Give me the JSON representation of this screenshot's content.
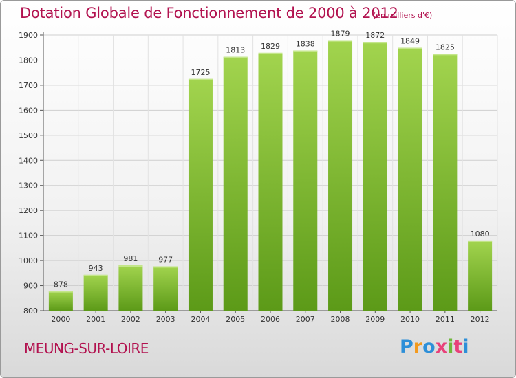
{
  "title": "Dotation Globale de Fonctionnement de 2000 à 2012",
  "subtitle": "(en milliers d'€)",
  "commune": "MEUNG-SUR-LOIRE",
  "logo": {
    "letters": [
      "P",
      "r",
      "o",
      "x",
      "i",
      "t",
      "i"
    ],
    "colors": [
      "#2d8fd8",
      "#f39a1e",
      "#2d8fd8",
      "#e8417a",
      "#6fb83b",
      "#e8417a",
      "#2d8fd8"
    ]
  },
  "colors": {
    "bar": "#8cc43c",
    "bar_dark": "#5a9418",
    "text": "#b2124f"
  },
  "chart_data": {
    "type": "bar",
    "categories": [
      "2000",
      "2001",
      "2002",
      "2003",
      "2004",
      "2005",
      "2006",
      "2007",
      "2008",
      "2009",
      "2010",
      "2011",
      "2012"
    ],
    "values": [
      878,
      943,
      981,
      977,
      1725,
      1813,
      1829,
      1838,
      1879,
      1872,
      1849,
      1825,
      1080
    ],
    "title": "Dotation Globale de Fonctionnement de 2000 à 2012",
    "subtitle": "(en milliers d'€)",
    "xlabel": "",
    "ylabel": "",
    "ylim": [
      800,
      1900
    ],
    "yticks": [
      800,
      900,
      1000,
      1100,
      1200,
      1300,
      1400,
      1500,
      1600,
      1700,
      1800,
      1900
    ],
    "grid": true,
    "data_labels": true
  }
}
